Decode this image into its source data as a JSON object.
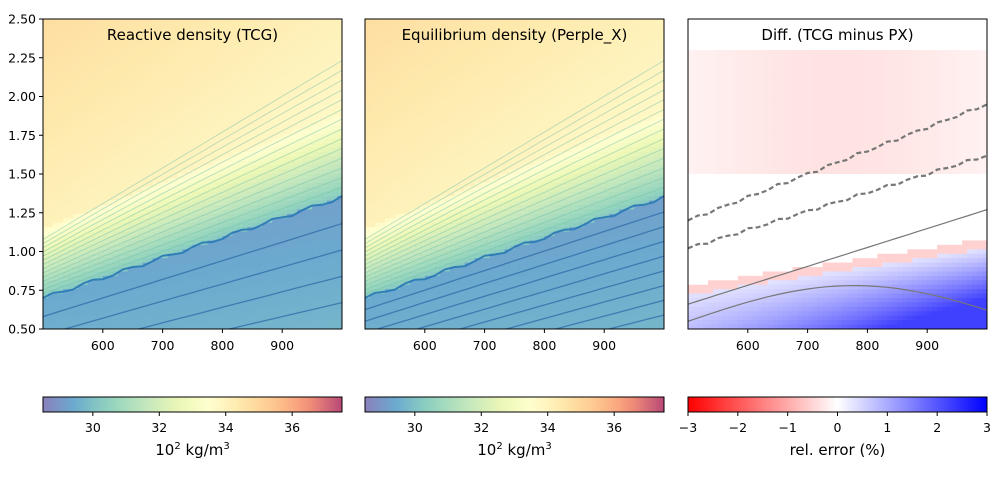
{
  "chart_data": [
    {
      "type": "heatmap",
      "title": "Reactive density (TCG)",
      "x_ticks": [
        600,
        700,
        800,
        900
      ],
      "y_ticks": [
        0.5,
        0.75,
        1.0,
        1.25,
        1.5,
        1.75,
        2.0,
        2.25,
        2.5
      ],
      "xlim": [
        500,
        1000
      ],
      "ylim": [
        0.5,
        2.5
      ],
      "colorbar": {
        "ticks": [
          30,
          32,
          34,
          36
        ],
        "range": [
          28.5,
          37.5
        ],
        "cmap": "Spectral_r",
        "label_main": "10",
        "label_sup": "2",
        "label_unit": " kg/m",
        "label_sup2": "3"
      },
      "structure": {
        "boundary_x": [
          500,
          1000
        ],
        "boundary_y": [
          0.7,
          1.35
        ],
        "ridge_y": [
          1.15,
          1.9
        ]
      }
    },
    {
      "type": "heatmap",
      "title": "Equilibrium density (Perple_X)",
      "x_ticks": [
        600,
        700,
        800,
        900
      ],
      "y_ticks": [],
      "xlim": [
        500,
        1000
      ],
      "ylim": [
        0.5,
        2.5
      ],
      "colorbar": {
        "ticks": [
          30,
          32,
          34,
          36
        ],
        "range": [
          28.5,
          37.5
        ],
        "cmap": "Spectral_r",
        "label_main": "10",
        "label_sup": "2",
        "label_unit": " kg/m",
        "label_sup2": "3"
      },
      "structure": {
        "boundary_x": [
          500,
          1000
        ],
        "boundary_y": [
          0.7,
          1.35
        ],
        "ridge_y": [
          1.15,
          1.9
        ]
      }
    },
    {
      "type": "heatmap",
      "title": "Diff. (TCG minus PX)",
      "x_ticks": [
        600,
        700,
        800,
        900
      ],
      "y_ticks": [],
      "xlim": [
        500,
        1000
      ],
      "ylim": [
        0.5,
        2.5
      ],
      "colorbar": {
        "ticks": [
          -3,
          -2,
          -1,
          0,
          1,
          2,
          3
        ],
        "range": [
          -3,
          3
        ],
        "cmap": "bwr_r",
        "label": "rel. error (%)"
      },
      "structure": {
        "boundary_x": [
          500,
          1000
        ],
        "boundary_y": [
          0.72,
          1.02
        ]
      }
    }
  ]
}
